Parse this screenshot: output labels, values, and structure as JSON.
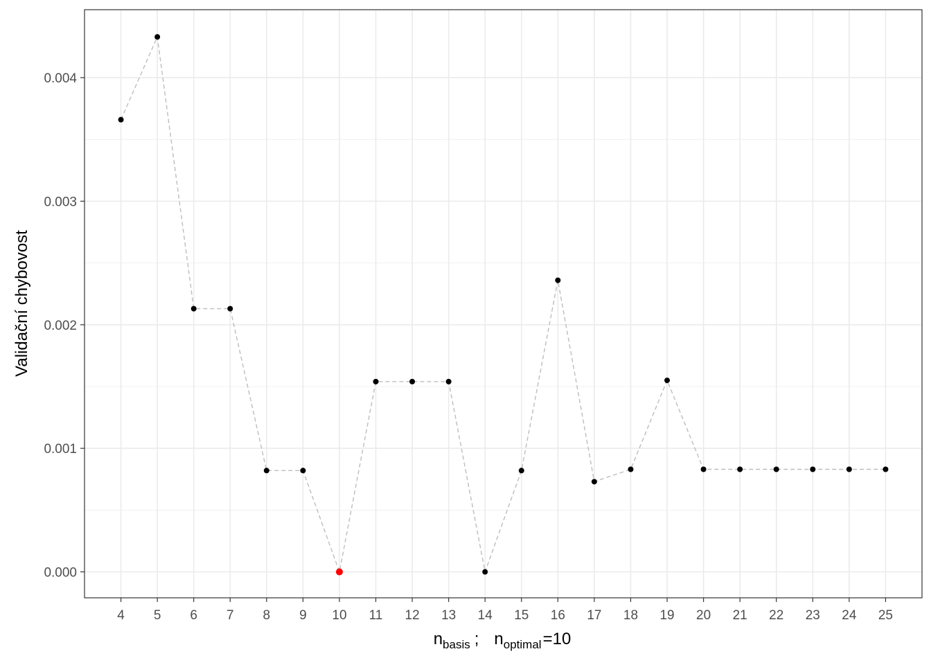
{
  "chart_data": {
    "type": "line",
    "title": "",
    "xlabel": {
      "main": "n",
      "sub": "basis",
      "separator": ";",
      "optimal_main": "n",
      "optimal_sub": "optimal",
      "optimal_eq": "=",
      "optimal_value": "10"
    },
    "ylabel": "Validační chybovost",
    "x": [
      4,
      5,
      6,
      7,
      8,
      9,
      10,
      11,
      12,
      13,
      14,
      15,
      16,
      17,
      18,
      19,
      20,
      21,
      22,
      23,
      24,
      25
    ],
    "series": [
      {
        "values": [
          0.00366,
          0.00433,
          0.00213,
          0.00213,
          0.00082,
          0.00082,
          0.0,
          0.00154,
          0.00154,
          0.00154,
          0.0,
          0.00082,
          0.00236,
          0.00073,
          0.00083,
          0.00155,
          0.00083,
          0.00083,
          0.00083,
          0.00083,
          0.00083,
          0.00083
        ]
      }
    ],
    "highlight_x": 10,
    "xlim": [
      3,
      26
    ],
    "ylim": [
      -0.00021,
      0.00455
    ],
    "x_ticks": [
      "4",
      "5",
      "6",
      "7",
      "8",
      "9",
      "10",
      "11",
      "12",
      "13",
      "14",
      "15",
      "16",
      "17",
      "18",
      "19",
      "20",
      "21",
      "22",
      "23",
      "24",
      "25"
    ],
    "y_ticks": [
      "0.000",
      "0.001",
      "0.002",
      "0.003",
      "0.004"
    ],
    "grid": true,
    "legend": "none",
    "colors": {
      "point": "#000000",
      "highlight": "#ff0000",
      "line": "#bdbdbd",
      "grid": "#ebebeb",
      "panel_border": "#333333",
      "tick_label": "#4d4d4d"
    }
  }
}
